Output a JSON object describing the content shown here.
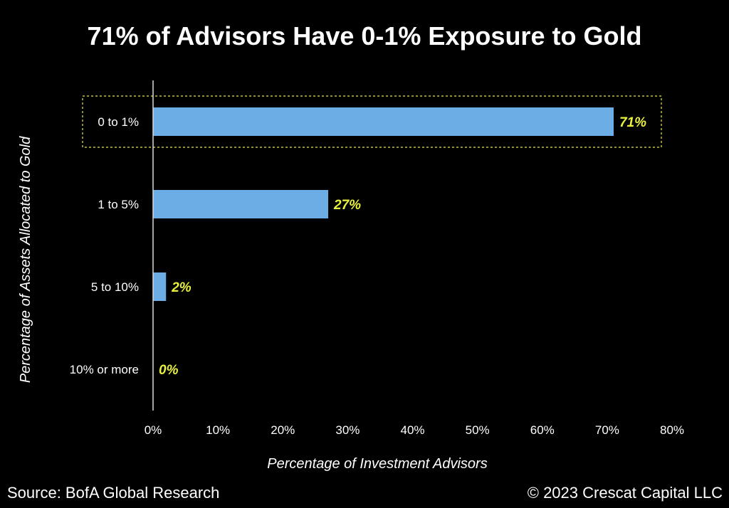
{
  "chart_data": {
    "type": "bar",
    "orientation": "horizontal",
    "title": "71% of Advisors Have 0-1% Exposure to Gold",
    "xlabel": "Percentage of Investment Advisors",
    "ylabel": "Percentage of Assets Allocated to Gold",
    "categories": [
      "0 to 1%",
      "1 to 5%",
      "5 to 10%",
      "10% or more"
    ],
    "values": [
      71,
      27,
      2,
      0
    ],
    "value_labels": [
      "71%",
      "27%",
      "2%",
      "0%"
    ],
    "xlim": [
      0,
      80
    ],
    "xticks": [
      "0%",
      "10%",
      "20%",
      "30%",
      "40%",
      "50%",
      "60%",
      "70%",
      "80%"
    ],
    "grid": false,
    "legend": "none",
    "highlight_category": "0 to 1%",
    "bar_color": "#6CADE6",
    "value_label_color": "#E8F03C",
    "highlight_border_color": "#E8E84A",
    "axis_color": "#D9D9D9"
  },
  "footer": {
    "source": "Source: BofA Global Research",
    "copyright": "© 2023 Crescat Capital LLC"
  }
}
